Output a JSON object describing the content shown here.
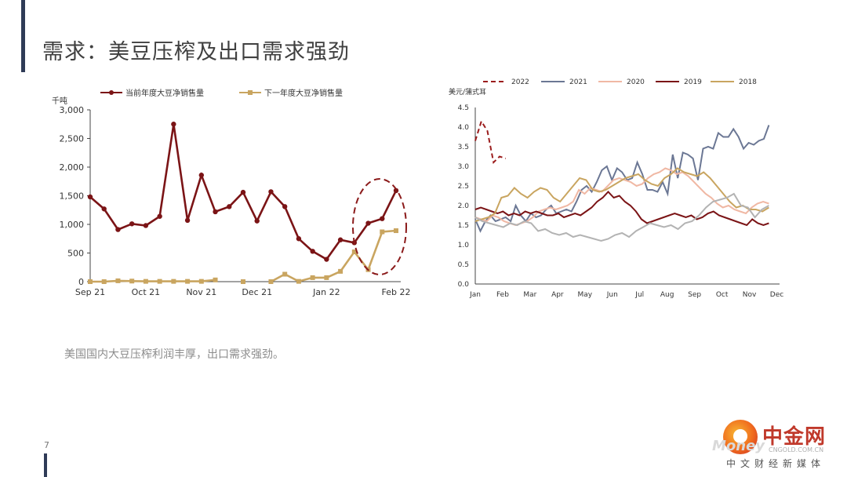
{
  "slide": {
    "title": "需求：美豆压榨及出口需求强劲",
    "caption": "美国国内大豆压榨利润丰厚，出口需求强劲。",
    "page_number": "7"
  },
  "watermark": {
    "brand": "中金网",
    "url": "CNGOLD.COM.CN",
    "subtitle": "中文财经新媒体",
    "ghost": "Money"
  },
  "chart_data": [
    {
      "type": "line",
      "ylabel": "千吨",
      "ylim": [
        0,
        3000
      ],
      "yticks": [
        "0",
        "500",
        "1,000",
        "1,500",
        "2,000",
        "2,500",
        "3,000"
      ],
      "xtick_labels": [
        "Sep 21",
        "Oct 21",
        "Nov 21",
        "Dec 21",
        "Jan 22",
        "Feb 22"
      ],
      "grid": false,
      "legend_position": "top",
      "series": [
        {
          "name": "当前年度大豆净销售量",
          "color": "#7b1416",
          "marker": "circle",
          "values": [
            1480,
            1270,
            910,
            1010,
            980,
            1140,
            2750,
            1070,
            1860,
            1220,
            1310,
            1560,
            1060,
            1570,
            1310,
            750,
            530,
            390,
            730,
            680,
            1020,
            1100,
            1590
          ]
        },
        {
          "name": "下一年度大豆净销售量",
          "color": "#c9a560",
          "marker": "square",
          "values": [
            0,
            0,
            15,
            10,
            5,
            5,
            5,
            5,
            5,
            30,
            null,
            0,
            null,
            0,
            130,
            5,
            70,
            70,
            180,
            520,
            210,
            870,
            890
          ]
        }
      ],
      "annotation": "dashed ellipse highlighting the recent rebound"
    },
    {
      "type": "line",
      "ylabel": "美元/蒲式耳",
      "ylim": [
        0,
        4.5
      ],
      "yticks": [
        "0.0",
        "0.5",
        "1.0",
        "1.5",
        "2.0",
        "2.5",
        "3.0",
        "3.5",
        "4.0",
        "4.5"
      ],
      "xtick_labels": [
        "Jan",
        "Feb",
        "Mar",
        "Apr",
        "May",
        "Jun",
        "Jul",
        "Aug",
        "Sep",
        "Oct",
        "Nov",
        "Dec"
      ],
      "grid": false,
      "legend_position": "top",
      "series": [
        {
          "name": "2022",
          "color": "#9b1c1c",
          "dashed": true,
          "values": [
            3.65,
            4.15,
            3.9,
            3.1,
            3.25,
            3.2
          ]
        },
        {
          "name": "2021",
          "color": "#6b7794",
          "dashed": false,
          "values": [
            1.65,
            1.35,
            1.6,
            1.75,
            1.6,
            1.65,
            1.7,
            1.6,
            2.0,
            1.75,
            1.6,
            1.8,
            1.7,
            1.75,
            1.9,
            2.0,
            1.8,
            1.85,
            1.9,
            1.85,
            2.1,
            2.4,
            2.5,
            2.35,
            2.6,
            2.9,
            3.0,
            2.65,
            2.95,
            2.85,
            2.65,
            2.7,
            3.1,
            2.8,
            2.4,
            2.4,
            2.35,
            2.6,
            2.3,
            3.3,
            2.7,
            3.35,
            3.3,
            3.2,
            2.65,
            3.45,
            3.5,
            3.45,
            3.85,
            3.75,
            3.75,
            3.95,
            3.75,
            3.45,
            3.6,
            3.55,
            3.65,
            3.7,
            4.05
          ]
        },
        {
          "name": "2020",
          "color": "#f0b8a4",
          "dashed": false,
          "values": [
            1.7,
            1.65,
            1.6,
            1.75,
            1.7,
            1.6,
            1.55,
            1.5,
            1.55,
            1.6,
            1.7,
            1.85,
            1.9,
            1.95,
            1.9,
            1.95,
            2.0,
            2.1,
            2.4,
            2.3,
            2.45,
            2.4,
            2.35,
            2.5,
            2.65,
            2.7,
            2.65,
            2.6,
            2.5,
            2.55,
            2.7,
            2.8,
            2.85,
            2.95,
            2.9,
            2.8,
            2.85,
            2.75,
            2.6,
            2.45,
            2.3,
            2.2,
            2.05,
            1.95,
            2.0,
            1.9,
            1.85,
            1.8,
            1.95,
            2.05,
            2.1,
            2.05
          ]
        },
        {
          "name": "2019",
          "color": "#7b1416",
          "dashed": false,
          "values": [
            1.9,
            1.95,
            1.9,
            1.85,
            1.8,
            1.85,
            1.75,
            1.8,
            1.75,
            1.85,
            1.8,
            1.85,
            1.8,
            1.75,
            1.75,
            1.8,
            1.7,
            1.75,
            1.8,
            1.75,
            1.85,
            1.95,
            2.1,
            2.2,
            2.35,
            2.2,
            2.25,
            2.1,
            2.0,
            1.85,
            1.65,
            1.55,
            1.6,
            1.65,
            1.7,
            1.75,
            1.8,
            1.75,
            1.7,
            1.75,
            1.65,
            1.7,
            1.8,
            1.85,
            1.75,
            1.7,
            1.65,
            1.6,
            1.55,
            1.5,
            1.65,
            1.55,
            1.5,
            1.55
          ]
        },
        {
          "name": "2018",
          "color": "#c9a560",
          "dashed": false,
          "values": [
            1.6,
            1.65,
            1.7,
            1.8,
            2.2,
            2.25,
            2.45,
            2.3,
            2.2,
            2.35,
            2.45,
            2.4,
            2.2,
            2.1,
            2.3,
            2.5,
            2.7,
            2.65,
            2.4,
            2.35,
            2.4,
            2.5,
            2.6,
            2.7,
            2.75,
            2.8,
            2.65,
            2.55,
            2.5,
            2.7,
            2.8,
            2.95,
            2.85,
            2.8,
            2.75,
            2.85,
            2.7,
            2.5,
            2.3,
            2.1,
            1.95,
            2.0,
            1.9,
            1.9,
            1.85,
            1.95
          ]
        },
        {
          "name": "",
          "color": "#b3b3b3",
          "dashed": false,
          "values": [
            1.7,
            1.6,
            1.55,
            1.5,
            1.45,
            1.55,
            1.5,
            1.6,
            1.55,
            1.35,
            1.4,
            1.3,
            1.25,
            1.3,
            1.2,
            1.25,
            1.2,
            1.15,
            1.1,
            1.15,
            1.25,
            1.3,
            1.2,
            1.35,
            1.45,
            1.55,
            1.5,
            1.45,
            1.5,
            1.4,
            1.55,
            1.6,
            1.75,
            1.95,
            2.1,
            2.15,
            2.2,
            2.3,
            2.0,
            1.95,
            1.7,
            1.9,
            2.0
          ]
        }
      ]
    }
  ]
}
